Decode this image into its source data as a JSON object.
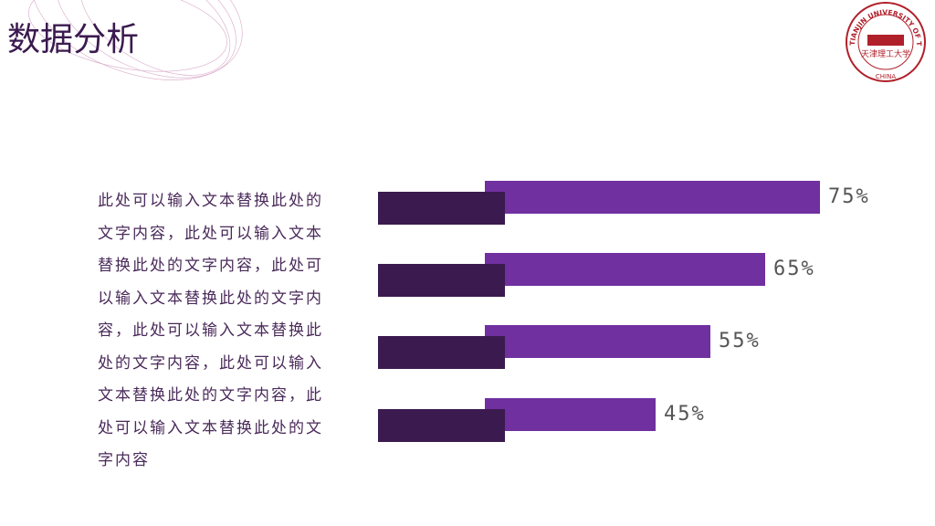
{
  "title": "数据分析",
  "body_text": "此处可以输入文本替换此处的文字内容，此处可以输入文本替换此处的文字内容，此处可以输入文本替换此处的文字内容，此处可以输入文本替换此处的文字内容，此处可以输入文本替换此处的文字内容，此处可以输入文本替换此处的文字内容",
  "logo": {
    "arc_text": "TIANJIN UNIVERSITY OF TECHNOLOGY",
    "bottom_text": "CHINA",
    "center_text": "天津理工大学"
  },
  "chart_data": {
    "type": "bar",
    "orientation": "horizontal",
    "values": [
      75,
      65,
      55,
      45
    ],
    "value_labels": [
      "75%",
      "65%",
      "55%",
      "45%"
    ],
    "color": "#7030a0",
    "shadow_color": "#3b1a4f"
  }
}
